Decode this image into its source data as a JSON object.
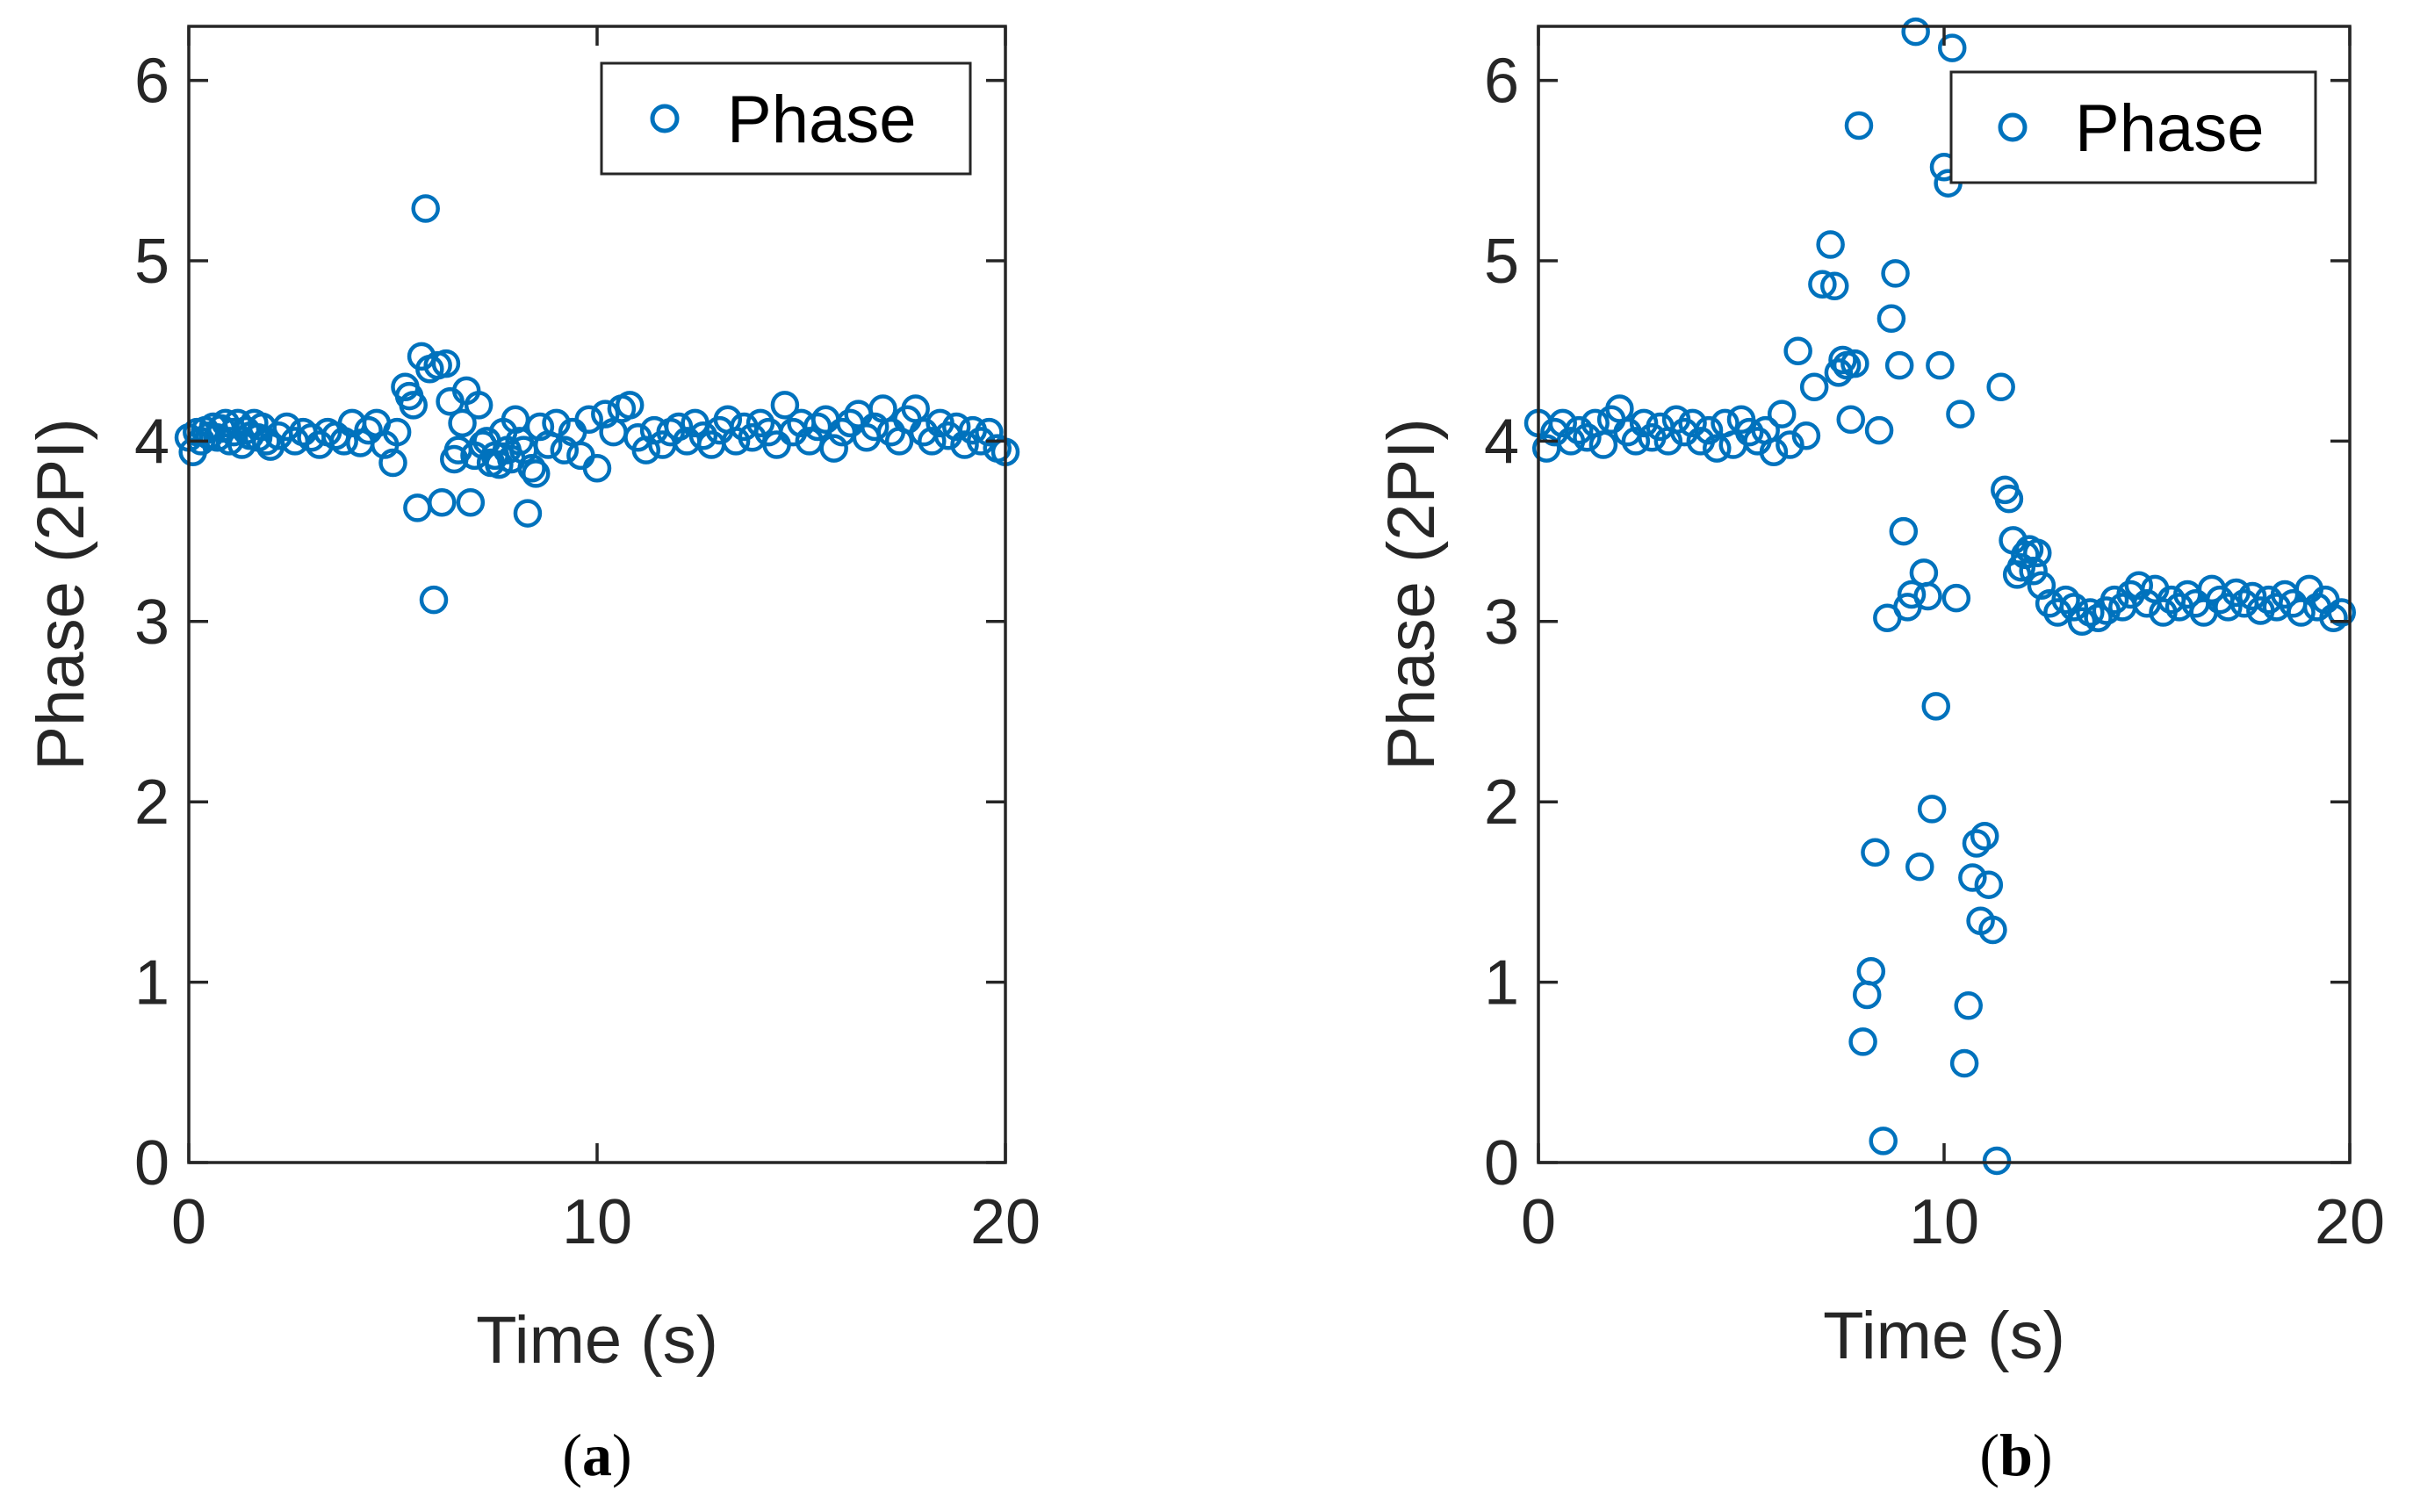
{
  "chart_data": [
    {
      "type": "scatter",
      "panel": "a",
      "caption_prefix": "(",
      "caption_letter": "a",
      "caption_suffix": ")",
      "xlabel": "Time (s)",
      "ylabel": "Phase (2PI)",
      "xlim": [
        0,
        20
      ],
      "ylim": [
        0,
        6.3
      ],
      "xticks": [
        0,
        10,
        20
      ],
      "yticks": [
        0,
        1,
        2,
        3,
        4,
        5,
        6
      ],
      "legend": "Phase",
      "legend_location": "top-right",
      "marker_color": "#0072bd",
      "series": [
        {
          "name": "Phase",
          "x": [
            0.0,
            0.1,
            0.2,
            0.3,
            0.4,
            0.5,
            0.6,
            0.7,
            0.8,
            0.9,
            1.0,
            1.1,
            1.2,
            1.3,
            1.4,
            1.5,
            1.6,
            1.7,
            1.8,
            1.9,
            2.0,
            2.2,
            2.4,
            2.6,
            2.8,
            3.0,
            3.2,
            3.4,
            3.6,
            3.8,
            4.0,
            4.2,
            4.4,
            4.6,
            4.8,
            5.0,
            5.1,
            5.3,
            5.4,
            5.5,
            5.6,
            5.7,
            5.8,
            5.9,
            6.0,
            6.1,
            6.2,
            6.3,
            6.4,
            6.5,
            6.6,
            6.7,
            6.8,
            6.9,
            7.0,
            7.1,
            7.2,
            7.3,
            7.4,
            7.5,
            7.6,
            7.7,
            7.8,
            7.9,
            8.0,
            8.1,
            8.2,
            8.3,
            8.4,
            8.5,
            8.6,
            8.8,
            9.0,
            9.2,
            9.4,
            9.6,
            9.8,
            10.0,
            10.2,
            10.4,
            10.6,
            10.8,
            11.0,
            11.2,
            11.4,
            11.6,
            11.8,
            12.0,
            12.2,
            12.4,
            12.6,
            12.8,
            13.0,
            13.2,
            13.4,
            13.6,
            13.8,
            14.0,
            14.2,
            14.4,
            14.6,
            14.8,
            15.0,
            15.2,
            15.4,
            15.6,
            15.8,
            16.0,
            16.2,
            16.4,
            16.6,
            16.8,
            17.0,
            17.2,
            17.4,
            17.6,
            17.8,
            18.0,
            18.2,
            18.4,
            18.6,
            18.8,
            19.0,
            19.2,
            19.4,
            19.6,
            19.8,
            20.0
          ],
          "y": [
            4.02,
            3.94,
            4.05,
            4.0,
            4.06,
            4.03,
            4.08,
            4.02,
            4.07,
            4.1,
            4.0,
            4.05,
            4.1,
            3.98,
            4.06,
            4.03,
            4.1,
            4.02,
            4.08,
            4.0,
            3.97,
            4.03,
            4.08,
            4.0,
            4.05,
            4.02,
            3.98,
            4.05,
            4.03,
            4.0,
            4.1,
            3.99,
            4.06,
            4.1,
            3.98,
            3.88,
            4.05,
            4.3,
            4.25,
            4.2,
            3.63,
            4.47,
            5.29,
            4.4,
            3.12,
            4.42,
            3.66,
            4.43,
            4.22,
            3.9,
            3.95,
            4.1,
            4.28,
            3.66,
            3.92,
            4.2,
            3.98,
            4.0,
            3.88,
            3.92,
            3.87,
            4.05,
            3.95,
            3.9,
            4.12,
            4.0,
            3.95,
            3.6,
            3.85,
            3.82,
            4.08,
            3.98,
            4.1,
            3.95,
            4.05,
            3.92,
            4.12,
            3.85,
            4.15,
            4.05,
            4.18,
            4.2,
            4.02,
            3.95,
            4.06,
            3.98,
            4.05,
            4.08,
            4.0,
            4.1,
            4.03,
            3.98,
            4.06,
            4.12,
            4.0,
            4.08,
            4.02,
            4.1,
            4.05,
            3.98,
            4.2,
            4.05,
            4.1,
            4.0,
            4.08,
            4.12,
            3.96,
            4.05,
            4.1,
            4.15,
            4.02,
            4.08,
            4.18,
            4.05,
            4.0,
            4.12,
            4.18,
            4.05,
            4.0,
            4.1,
            4.03,
            4.08,
            3.98,
            4.06,
            4.0,
            4.05,
            3.96,
            3.94
          ]
        }
      ]
    },
    {
      "type": "scatter",
      "panel": "b",
      "caption_prefix": "(",
      "caption_letter": "b",
      "caption_suffix": ")",
      "xlabel": "Time (s)",
      "ylabel": "Phase (2PI)",
      "xlim": [
        0,
        20
      ],
      "ylim": [
        0,
        6.3
      ],
      "xticks": [
        0,
        10,
        20
      ],
      "yticks": [
        0,
        1,
        2,
        3,
        4,
        5,
        6
      ],
      "legend": "Phase",
      "legend_location": "top-right",
      "marker_color": "#0072bd",
      "series": [
        {
          "name": "Phase",
          "x": [
            0.0,
            0.2,
            0.4,
            0.6,
            0.8,
            1.0,
            1.2,
            1.4,
            1.6,
            1.8,
            2.0,
            2.2,
            2.4,
            2.6,
            2.8,
            3.0,
            3.2,
            3.4,
            3.6,
            3.8,
            4.0,
            4.2,
            4.4,
            4.6,
            4.8,
            5.0,
            5.2,
            5.4,
            5.6,
            5.8,
            6.0,
            6.2,
            6.4,
            6.6,
            6.8,
            7.0,
            7.2,
            7.3,
            7.4,
            7.5,
            7.6,
            7.7,
            7.8,
            7.9,
            8.0,
            8.1,
            8.2,
            8.3,
            8.4,
            8.5,
            8.6,
            8.7,
            8.8,
            8.9,
            9.0,
            9.1,
            9.2,
            9.3,
            9.4,
            9.5,
            9.6,
            9.7,
            9.8,
            9.9,
            10.0,
            10.1,
            10.2,
            10.3,
            10.4,
            10.5,
            10.6,
            10.7,
            10.8,
            10.9,
            11.0,
            11.1,
            11.2,
            11.3,
            11.4,
            11.5,
            11.6,
            11.7,
            11.8,
            11.9,
            12.0,
            12.1,
            12.2,
            12.3,
            12.4,
            12.6,
            12.8,
            13.0,
            13.2,
            13.4,
            13.6,
            13.8,
            14.0,
            14.2,
            14.4,
            14.6,
            14.8,
            15.0,
            15.2,
            15.4,
            15.6,
            15.8,
            16.0,
            16.2,
            16.4,
            16.6,
            16.8,
            17.0,
            17.2,
            17.4,
            17.6,
            17.8,
            18.0,
            18.2,
            18.4,
            18.6,
            18.8,
            19.0,
            19.2,
            19.4,
            19.6,
            19.8
          ],
          "y": [
            4.1,
            3.96,
            4.05,
            4.1,
            4.0,
            4.06,
            4.02,
            4.1,
            3.98,
            4.12,
            4.18,
            4.05,
            4.0,
            4.1,
            4.02,
            4.08,
            4.0,
            4.12,
            4.05,
            4.1,
            4.0,
            4.06,
            3.96,
            4.1,
            3.98,
            4.12,
            4.05,
            4.0,
            4.06,
            3.94,
            4.15,
            3.98,
            4.5,
            4.03,
            4.3,
            4.87,
            5.09,
            4.86,
            4.38,
            4.45,
            4.42,
            4.12,
            4.43,
            5.75,
            0.67,
            0.93,
            1.06,
            1.72,
            4.06,
            0.12,
            3.02,
            4.68,
            4.93,
            4.42,
            3.5,
            3.08,
            3.15,
            6.27,
            1.64,
            3.27,
            3.14,
            1.96,
            2.53,
            4.42,
            5.52,
            5.43,
            6.18,
            3.13,
            4.15,
            0.55,
            0.87,
            1.58,
            1.77,
            1.34,
            1.81,
            1.54,
            1.29,
            0.01,
            4.3,
            3.73,
            3.68,
            3.45,
            3.26,
            3.3,
            3.37,
            3.4,
            3.28,
            3.38,
            3.2,
            3.1,
            3.05,
            3.12,
            3.08,
            3.0,
            3.05,
            3.02,
            3.06,
            3.12,
            3.08,
            3.15,
            3.2,
            3.1,
            3.18,
            3.05,
            3.12,
            3.08,
            3.15,
            3.1,
            3.05,
            3.18,
            3.12,
            3.08,
            3.16,
            3.1,
            3.14,
            3.06,
            3.12,
            3.08,
            3.15,
            3.1,
            3.05,
            3.18,
            3.08,
            3.12,
            3.02,
            3.05
          ]
        }
      ]
    }
  ]
}
